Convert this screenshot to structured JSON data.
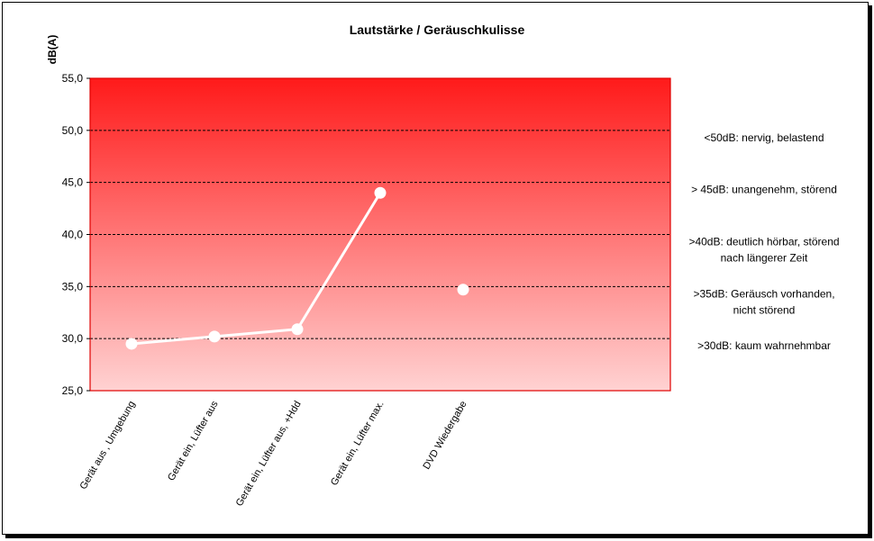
{
  "chart_data": {
    "type": "line",
    "title": "Lautstärke / Geräuschkulisse",
    "ylabel": "dB(A)",
    "xlabel": "",
    "ylim": [
      25,
      55
    ],
    "yticks": [
      "25,0",
      "30,0",
      "35,0",
      "40,0",
      "45,0",
      "50,0",
      "55,0"
    ],
    "categories": [
      "Gerät aus , Umgebung",
      "Gerät ein, Lüfter aus",
      "Gerät ein, Lüfter aus, +Hdd",
      "Gerät ein, Lüfter max.",
      "DVD Wiedergabe"
    ],
    "slots": 7,
    "series": [
      {
        "values": [
          29.5,
          30.2,
          30.9,
          44.0,
          34.7
        ],
        "connected_until": 3
      }
    ],
    "grid": true,
    "thresholds": [
      {
        "value": 50,
        "label": [
          "<50dB: nervig, belastend"
        ]
      },
      {
        "value": 45,
        "label": [
          "> 45dB: unangenehm, störend"
        ]
      },
      {
        "value": 40,
        "label": [
          ">40dB: deutlich hörbar, störend",
          "nach längerer Zeit"
        ]
      },
      {
        "value": 35,
        "label": [
          ">35dB: Geräusch vorhanden,",
          "nicht störend"
        ]
      },
      {
        "value": 30,
        "label": [
          ">30dB: kaum wahrnehmbar"
        ]
      }
    ],
    "colors": {
      "gradient_top": "#ff1a1a",
      "gradient_bottom": "#ffd2d2",
      "plot_border": "#e00000",
      "line": "#ffffff",
      "grid": "#000000"
    }
  }
}
